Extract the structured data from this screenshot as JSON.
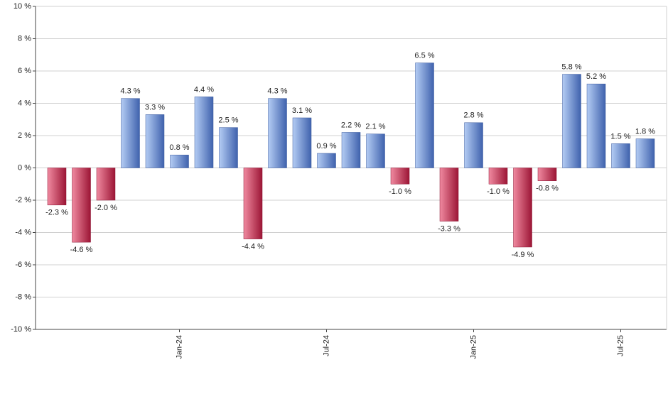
{
  "chart_data": {
    "type": "bar",
    "categories": [
      null,
      null,
      null,
      null,
      null,
      "Jan-24",
      null,
      null,
      null,
      null,
      null,
      "Jul-24",
      null,
      null,
      null,
      null,
      null,
      "Jan-25",
      null,
      null,
      null,
      null,
      null,
      "Jul-25",
      null
    ],
    "values": [
      -2.3,
      -4.6,
      -2.0,
      4.3,
      3.3,
      0.8,
      4.4,
      2.5,
      -4.4,
      4.3,
      3.1,
      0.9,
      2.2,
      2.1,
      -1.0,
      6.5,
      -3.3,
      2.8,
      -1.0,
      -4.9,
      -0.8,
      5.8,
      5.2,
      1.5,
      1.8
    ],
    "value_labels": [
      "-2.3 %",
      "-4.6 %",
      "-2.0 %",
      "4.3 %",
      "3.3 %",
      "0.8 %",
      "4.4 %",
      "2.5 %",
      "-4.4 %",
      "4.3 %",
      "3.1 %",
      "0.9 %",
      "2.2 %",
      "2.1 %",
      "-1.0 %",
      "6.5 %",
      "-3.3 %",
      "2.8 %",
      "-1.0 %",
      "-4.9 %",
      "-0.8 %",
      "5.8 %",
      "5.2 %",
      "1.5 %",
      "1.8 %"
    ],
    "positive_colors": [
      "#b4ccf4",
      "#3f62ad"
    ],
    "negative_colors": [
      "#f08aa0",
      "#9c1535"
    ],
    "ylim": [
      -10,
      10
    ],
    "yticks": [
      {
        "value": -10,
        "label": "-10 %"
      },
      {
        "value": -8,
        "label": "-8 %"
      },
      {
        "value": -6,
        "label": "-6 %"
      },
      {
        "value": -4,
        "label": "-4 %"
      },
      {
        "value": -2,
        "label": "-2 %"
      },
      {
        "value": 0,
        "label": "0 %"
      },
      {
        "value": 2,
        "label": "2 %"
      },
      {
        "value": 4,
        "label": "4 %"
      },
      {
        "value": 6,
        "label": "6 %"
      },
      {
        "value": 8,
        "label": "8 %"
      },
      {
        "value": 10,
        "label": "10 %"
      }
    ],
    "grid": true
  }
}
